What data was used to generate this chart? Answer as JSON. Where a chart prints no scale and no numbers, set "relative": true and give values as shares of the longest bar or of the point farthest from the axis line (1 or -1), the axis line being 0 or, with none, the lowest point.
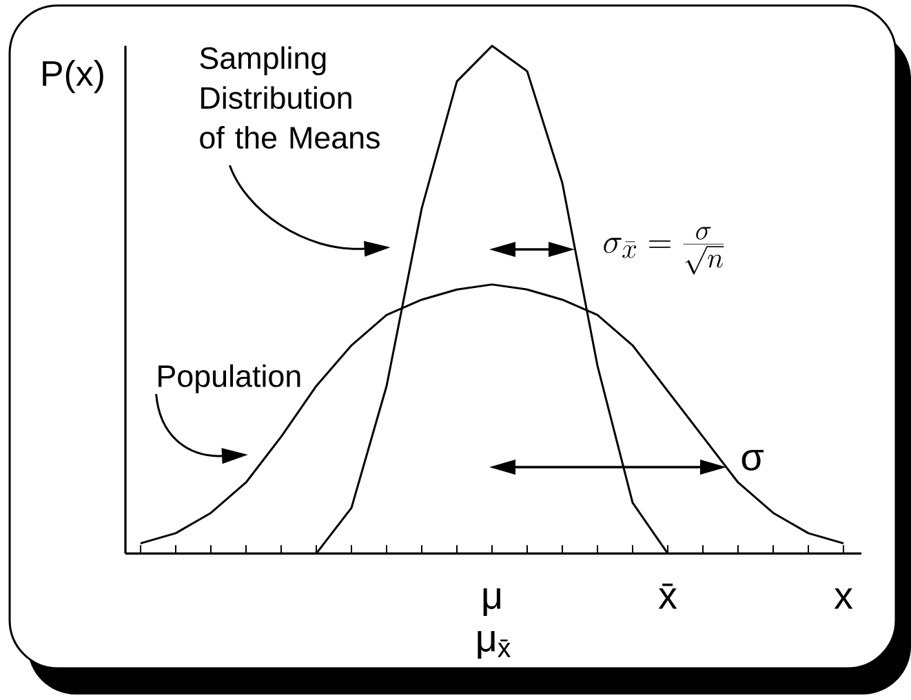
{
  "chart_data": {
    "type": "line",
    "relative": true,
    "ylabel": "P(x)",
    "xlabel": "x",
    "categories": [
      null,
      null,
      null,
      null,
      null,
      null,
      null,
      null,
      null,
      null,
      "μ",
      null,
      null,
      null,
      null,
      "x̄",
      null,
      null,
      null,
      null,
      null
    ],
    "series": [
      {
        "name": "Sampling Distribution of the Means",
        "color": "#000000",
        "values": [
          null,
          null,
          null,
          null,
          null,
          0,
          0.09,
          0.33,
          0.68,
          0.93,
          1,
          0.95,
          0.73,
          0.37,
          0.1,
          0,
          null,
          null,
          null,
          null,
          null
        ]
      },
      {
        "name": "Population",
        "color": "#000000",
        "values": [
          0.02,
          0.04,
          0.08,
          0.14,
          0.23,
          0.33,
          0.41,
          0.47,
          0.5,
          0.52,
          0.53,
          0.52,
          0.5,
          0.47,
          0.41,
          0.32,
          0.23,
          0.14,
          0.08,
          0.04,
          0.02
        ]
      }
    ],
    "annotations": [
      "\\sigma_{\\bar{x}} = \\frac{\\sigma}{\\sqrt{n}}",
      "σ",
      "μ$_{x̄}$"
    ],
    "marker": "none",
    "line_style": "solid"
  }
}
